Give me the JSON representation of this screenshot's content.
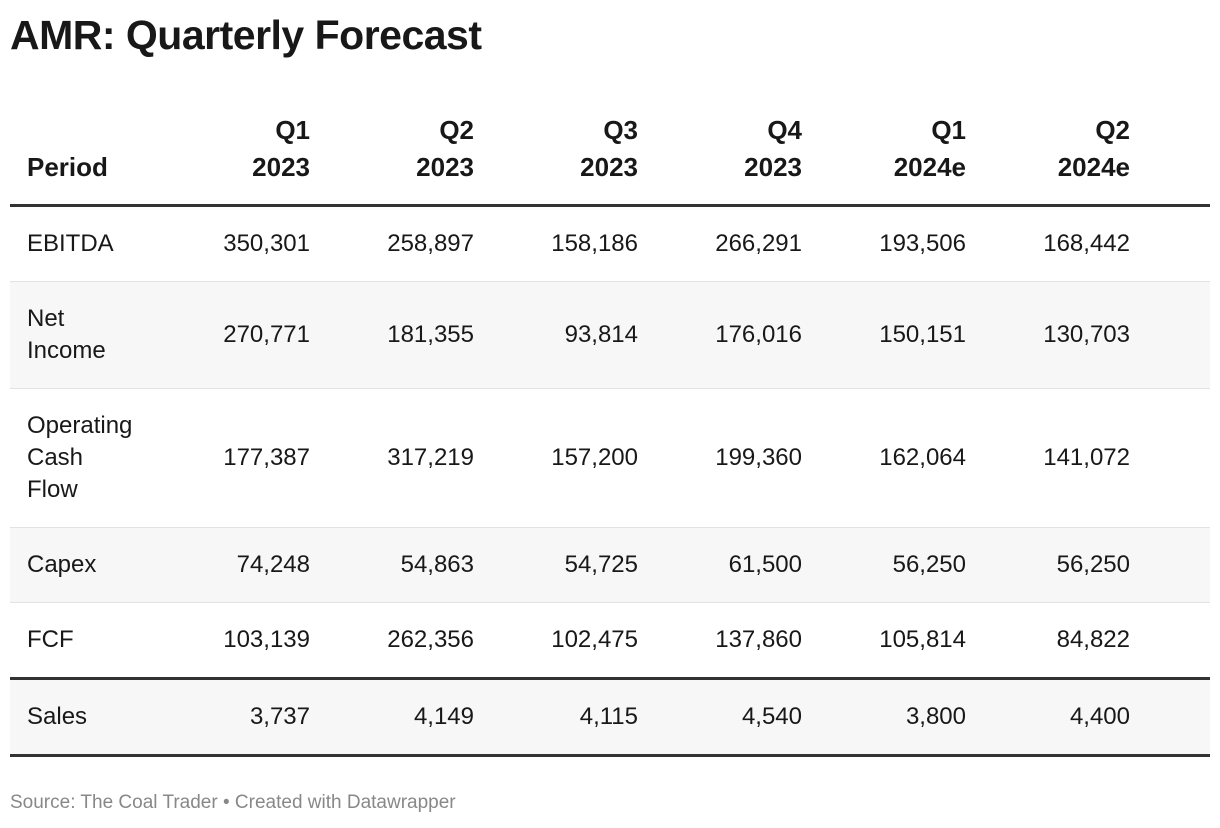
{
  "title": "AMR: Quarterly Forecast",
  "table": {
    "header": [
      "Period",
      "Q1\n2023",
      "Q2\n2023",
      "Q3\n2023",
      "Q4\n2023",
      "Q1\n2024e",
      "Q2\n2024e"
    ],
    "rows": [
      [
        "EBITDA",
        "350,301",
        "258,897",
        "158,186",
        "266,291",
        "193,506",
        "168,442"
      ],
      [
        "Net Income",
        "270,771",
        "181,355",
        "93,814",
        "176,016",
        "150,151",
        "130,703"
      ],
      [
        "Operating Cash Flow",
        "177,387",
        "317,219",
        "157,200",
        "199,360",
        "162,064",
        "141,072"
      ],
      [
        "Capex",
        "74,248",
        "54,863",
        "54,725",
        "61,500",
        "56,250",
        "56,250"
      ],
      [
        "FCF",
        "103,139",
        "262,356",
        "102,475",
        "137,860",
        "105,814",
        "84,822"
      ],
      [
        "Sales",
        "3,737",
        "4,149",
        "4,115",
        "4,540",
        "3,800",
        "4,400"
      ]
    ]
  },
  "footer": "Source: The Coal Trader • Created with Datawrapper"
}
